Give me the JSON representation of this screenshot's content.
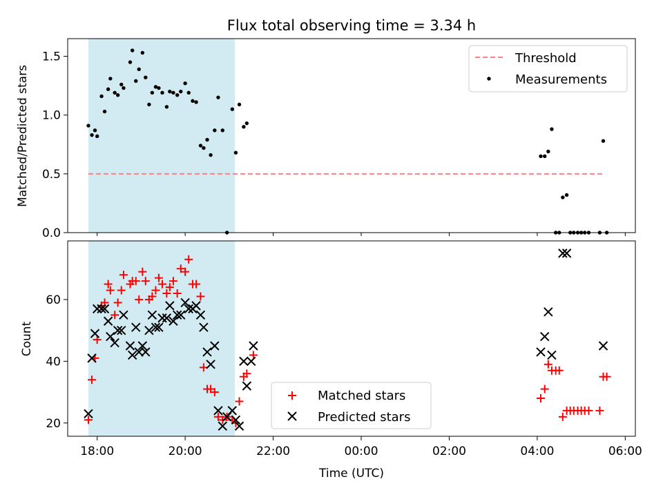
{
  "figure": {
    "title": "Flux total observing time = 3.34 h",
    "xlabel": "Time (UTC)"
  },
  "chart_data": [
    {
      "type": "scatter",
      "panel": "top",
      "ylabel": "Matched/Predicted stars",
      "ylim": [
        0,
        1.65
      ],
      "yticks": [
        0.0,
        0.5,
        1.0,
        1.5
      ],
      "ytick_labels": [
        "0.0",
        "0.5",
        "1.0",
        "1.5"
      ],
      "xlim_hours": [
        17.33,
        30.23
      ],
      "xticks_hours": [
        18,
        20,
        22,
        24,
        26,
        28,
        30
      ],
      "xtick_labels": [],
      "shaded_span_hours": [
        17.8,
        21.13
      ],
      "shade_color": "#add8e6",
      "legend_position": "upper right",
      "series": [
        {
          "name": "Threshold",
          "kind": "dashed-line",
          "color": "#ff7f7f",
          "x_hours": [
            17.8,
            29.5
          ],
          "values": [
            0.5,
            0.5
          ]
        },
        {
          "name": "Measurements",
          "kind": "dots",
          "color": "#000000",
          "points": [
            [
              17.8,
              0.91
            ],
            [
              17.88,
              0.83
            ],
            [
              17.95,
              0.87
            ],
            [
              18.0,
              0.82
            ],
            [
              18.1,
              1.16
            ],
            [
              18.17,
              1.03
            ],
            [
              18.25,
              1.22
            ],
            [
              18.3,
              1.31
            ],
            [
              18.4,
              1.19
            ],
            [
              18.47,
              1.17
            ],
            [
              18.55,
              1.26
            ],
            [
              18.6,
              1.23
            ],
            [
              18.75,
              1.45
            ],
            [
              18.8,
              1.55
            ],
            [
              18.88,
              1.29
            ],
            [
              18.95,
              1.39
            ],
            [
              19.03,
              1.53
            ],
            [
              19.1,
              1.32
            ],
            [
              19.18,
              1.09
            ],
            [
              19.25,
              1.19
            ],
            [
              19.33,
              1.24
            ],
            [
              19.4,
              1.23
            ],
            [
              19.48,
              1.19
            ],
            [
              19.58,
              1.07
            ],
            [
              19.65,
              1.2
            ],
            [
              19.73,
              1.19
            ],
            [
              19.82,
              1.17
            ],
            [
              19.9,
              1.2
            ],
            [
              20.0,
              1.27
            ],
            [
              20.08,
              1.19
            ],
            [
              20.17,
              1.12
            ],
            [
              20.25,
              1.11
            ],
            [
              20.35,
              0.74
            ],
            [
              20.42,
              0.72
            ],
            [
              20.5,
              0.79
            ],
            [
              20.58,
              0.66
            ],
            [
              20.67,
              0.87
            ],
            [
              20.75,
              1.15
            ],
            [
              20.85,
              0.87
            ],
            [
              20.95,
              0.0
            ],
            [
              21.07,
              1.05
            ],
            [
              21.15,
              0.68
            ],
            [
              21.23,
              1.09
            ],
            [
              21.33,
              0.9
            ],
            [
              21.4,
              0.93
            ],
            [
              28.08,
              0.65
            ],
            [
              28.17,
              0.65
            ],
            [
              28.25,
              0.69
            ],
            [
              28.33,
              0.88
            ],
            [
              28.42,
              0.0
            ],
            [
              28.5,
              0.0
            ],
            [
              28.58,
              0.3
            ],
            [
              28.67,
              0.32
            ],
            [
              28.75,
              0.0
            ],
            [
              28.83,
              0.0
            ],
            [
              28.92,
              0.0
            ],
            [
              29.0,
              0.0
            ],
            [
              29.08,
              0.0
            ],
            [
              29.17,
              0.0
            ],
            [
              29.42,
              0.0
            ],
            [
              29.5,
              0.78
            ],
            [
              29.58,
              0.0
            ]
          ]
        }
      ]
    },
    {
      "type": "scatter",
      "panel": "bottom",
      "ylabel": "Count",
      "ylim": [
        15.7,
        79
      ],
      "yticks": [
        20,
        40,
        60
      ],
      "ytick_labels": [
        "20",
        "40",
        "60"
      ],
      "xlim_hours": [
        17.33,
        30.23
      ],
      "xticks_hours": [
        18,
        20,
        22,
        24,
        26,
        28,
        30
      ],
      "xtick_labels": [
        "18:00",
        "20:00",
        "22:00",
        "00:00",
        "02:00",
        "04:00",
        "06:00"
      ],
      "shaded_span_hours": [
        17.8,
        21.13
      ],
      "shade_color": "#add8e6",
      "legend_position": "lower center",
      "series": [
        {
          "name": "Matched stars",
          "marker": "plus",
          "color": "#ff0000",
          "points": [
            [
              17.8,
              21
            ],
            [
              17.88,
              34
            ],
            [
              17.95,
              41
            ],
            [
              18.0,
              47
            ],
            [
              18.1,
              58
            ],
            [
              18.17,
              59
            ],
            [
              18.25,
              65
            ],
            [
              18.3,
              63
            ],
            [
              18.4,
              55
            ],
            [
              18.47,
              59
            ],
            [
              18.55,
              63
            ],
            [
              18.6,
              68
            ],
            [
              18.75,
              65
            ],
            [
              18.8,
              66
            ],
            [
              18.88,
              66
            ],
            [
              18.95,
              60
            ],
            [
              19.03,
              69
            ],
            [
              19.1,
              66
            ],
            [
              19.18,
              60
            ],
            [
              19.25,
              61
            ],
            [
              19.33,
              63
            ],
            [
              19.4,
              67
            ],
            [
              19.48,
              65
            ],
            [
              19.58,
              62
            ],
            [
              19.65,
              64
            ],
            [
              19.73,
              66
            ],
            [
              19.82,
              62
            ],
            [
              19.9,
              70
            ],
            [
              20.0,
              69
            ],
            [
              20.08,
              73
            ],
            [
              20.17,
              65
            ],
            [
              20.25,
              65
            ],
            [
              20.35,
              61
            ],
            [
              20.42,
              38
            ],
            [
              20.5,
              31
            ],
            [
              20.58,
              31
            ],
            [
              20.67,
              30
            ],
            [
              20.75,
              22
            ],
            [
              20.85,
              21
            ],
            [
              20.95,
              22
            ],
            [
              21.07,
              21
            ],
            [
              21.15,
              20
            ],
            [
              21.23,
              27
            ],
            [
              21.33,
              35
            ],
            [
              21.4,
              36
            ],
            [
              21.55,
              42
            ],
            [
              28.08,
              28
            ],
            [
              28.17,
              31
            ],
            [
              28.25,
              39
            ],
            [
              28.33,
              37
            ],
            [
              28.42,
              37
            ],
            [
              28.5,
              37
            ],
            [
              28.58,
              22
            ],
            [
              28.67,
              24
            ],
            [
              28.75,
              24
            ],
            [
              28.83,
              24
            ],
            [
              28.92,
              24
            ],
            [
              29.0,
              24
            ],
            [
              29.08,
              24
            ],
            [
              29.17,
              24
            ],
            [
              29.42,
              24
            ],
            [
              29.5,
              35
            ],
            [
              29.58,
              35
            ]
          ]
        },
        {
          "name": "Predicted stars",
          "marker": "x",
          "color": "#000000",
          "points": [
            [
              17.8,
              23
            ],
            [
              17.88,
              41
            ],
            [
              17.95,
              49
            ],
            [
              18.0,
              57
            ],
            [
              18.1,
              57
            ],
            [
              18.17,
              57
            ],
            [
              18.25,
              53
            ],
            [
              18.3,
              48
            ],
            [
              18.4,
              46
            ],
            [
              18.47,
              50
            ],
            [
              18.55,
              50
            ],
            [
              18.6,
              55
            ],
            [
              18.75,
              45
            ],
            [
              18.8,
              42
            ],
            [
              18.88,
              51
            ],
            [
              18.95,
              43
            ],
            [
              19.03,
              45
            ],
            [
              19.1,
              43
            ],
            [
              19.18,
              50
            ],
            [
              19.25,
              55
            ],
            [
              19.33,
              51
            ],
            [
              19.4,
              51
            ],
            [
              19.48,
              54
            ],
            [
              19.58,
              54
            ],
            [
              19.65,
              58
            ],
            [
              19.73,
              53
            ],
            [
              19.82,
              55
            ],
            [
              19.9,
              55
            ],
            [
              20.0,
              59
            ],
            [
              20.08,
              57
            ],
            [
              20.17,
              57
            ],
            [
              20.25,
              58
            ],
            [
              20.35,
              55
            ],
            [
              20.42,
              51
            ],
            [
              20.5,
              43
            ],
            [
              20.58,
              39
            ],
            [
              20.67,
              45
            ],
            [
              20.75,
              24
            ],
            [
              20.85,
              19
            ],
            [
              20.95,
              22
            ],
            [
              21.07,
              24
            ],
            [
              21.15,
              21
            ],
            [
              21.23,
              19
            ],
            [
              21.33,
              40
            ],
            [
              21.4,
              32
            ],
            [
              21.5,
              40
            ],
            [
              21.55,
              45
            ],
            [
              28.08,
              43
            ],
            [
              28.17,
              48
            ],
            [
              28.25,
              56
            ],
            [
              28.33,
              42
            ],
            [
              28.58,
              75
            ],
            [
              28.67,
              75
            ],
            [
              29.5,
              45
            ]
          ]
        }
      ]
    }
  ]
}
